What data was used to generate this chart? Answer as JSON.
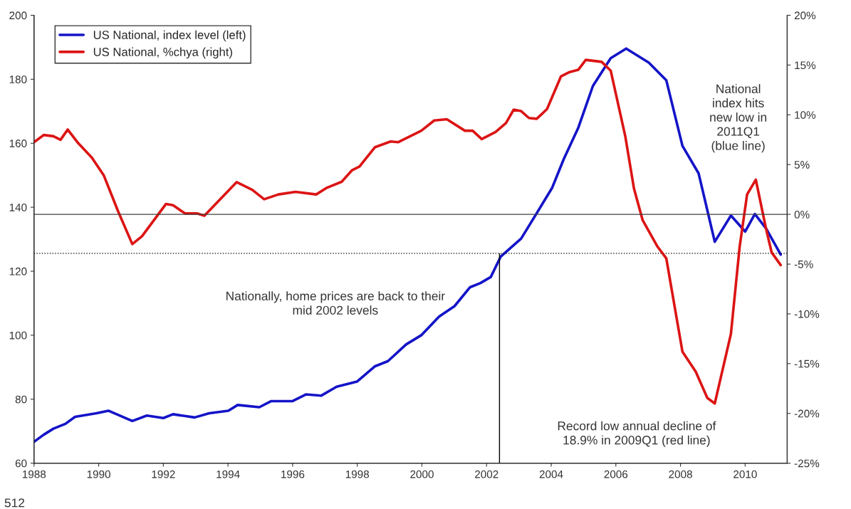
{
  "chart_data": {
    "type": "line",
    "series": [
      {
        "name": "US National, index level (left)",
        "color": "#1414c8",
        "x": [
          1988.0,
          1988.3,
          1988.6,
          1988.97,
          1989.27,
          1989.93,
          1990.3,
          1991.04,
          1991.49,
          1992.0,
          1992.3,
          1992.97,
          1993.42,
          1994.01,
          1994.3,
          1994.97,
          1995.34,
          1996.0,
          1996.41,
          1996.88,
          1997.36,
          1997.99,
          1998.55,
          1998.95,
          1999.51,
          1999.98,
          2000.53,
          2001.01,
          2001.49,
          2001.81,
          2002.13,
          2002.44,
          2003.07,
          2003.55,
          2004.03,
          2004.39,
          2004.84,
          2005.29,
          2005.84,
          2006.32,
          2007.02,
          2007.56,
          2008.06,
          2008.56,
          2009.06,
          2009.56,
          2010.0,
          2010.3,
          2010.65,
          2011.1
        ],
        "values": [
          66.7,
          68.9,
          70.8,
          72.3,
          74.5,
          75.6,
          76.4,
          73.2,
          74.9,
          74.1,
          75.3,
          74.3,
          75.6,
          76.4,
          78.2,
          77.5,
          79.4,
          79.4,
          81.5,
          81.1,
          83.9,
          85.5,
          90.3,
          91.9,
          97.1,
          100,
          105.8,
          109.1,
          115,
          116.3,
          118.2,
          124.6,
          130.2,
          138.1,
          146.1,
          155.1,
          164.9,
          177.9,
          186.6,
          189.6,
          185.2,
          179.7,
          159.2,
          150.6,
          129.2,
          137.4,
          132.4,
          137.9,
          133.3,
          125.2
        ]
      },
      {
        "name": "US National, %chya (right)",
        "color": "#dc1414",
        "axis": "y2",
        "x": [
          1988.0,
          1988.3,
          1988.6,
          1988.82,
          1989.04,
          1989.34,
          1989.79,
          1990.16,
          1990.6,
          1991.04,
          1991.34,
          1992.08,
          1992.3,
          1992.67,
          1993.04,
          1993.27,
          1994.27,
          1994.75,
          1995.12,
          1995.56,
          1996.09,
          1996.73,
          1997.04,
          1997.52,
          1997.84,
          1998.07,
          1998.55,
          1999.03,
          1999.27,
          1999.98,
          2000.38,
          2000.77,
          2001.33,
          2001.57,
          2001.85,
          2002.28,
          2002.6,
          2002.84,
          2003.07,
          2003.31,
          2003.55,
          2003.87,
          2004.3,
          2004.57,
          2004.84,
          2005.07,
          2005.56,
          2005.84,
          2006.29,
          2006.56,
          2006.83,
          2007.29,
          2007.56,
          2008.06,
          2008.47,
          2008.83,
          2009.06,
          2009.56,
          2009.83,
          2010.06,
          2010.33,
          2010.65,
          2010.82,
          2011.1
        ],
        "values": [
          7.25,
          7.97,
          7.85,
          7.49,
          8.52,
          7.25,
          5.7,
          3.9,
          0.31,
          -2.99,
          -2.2,
          1.04,
          0.92,
          0.09,
          0.09,
          -0.13,
          3.24,
          2.47,
          1.52,
          2.0,
          2.26,
          2.0,
          2.64,
          3.28,
          4.44,
          4.81,
          6.75,
          7.32,
          7.25,
          8.4,
          9.43,
          9.55,
          8.4,
          8.4,
          7.56,
          8.28,
          9.17,
          10.52,
          10.37,
          9.68,
          9.6,
          10.57,
          13.85,
          14.3,
          14.53,
          15.52,
          15.32,
          14.44,
          7.87,
          2.6,
          -0.6,
          -3.25,
          -4.42,
          -13.8,
          -15.8,
          -18.45,
          -19.0,
          -12.0,
          -3.25,
          2.0,
          3.48,
          -1.5,
          -3.83,
          -5.1
        ]
      }
    ],
    "xlim": [
      1988,
      2011.3
    ],
    "xticks": [
      1988,
      1990,
      1992,
      1994,
      1996,
      1998,
      2000,
      2002,
      2004,
      2006,
      2008,
      2010
    ],
    "ylim": [
      60,
      200
    ],
    "yticks": [
      60,
      80,
      100,
      120,
      140,
      160,
      180,
      200
    ],
    "y2lim": [
      -25,
      20
    ],
    "y2ticks": [
      {
        "value": -25,
        "label": "-25%"
      },
      {
        "value": -20,
        "label": "-20%"
      },
      {
        "value": -15,
        "label": "-15%"
      },
      {
        "value": -10,
        "label": "-10%"
      },
      {
        "value": -5,
        "label": "-5%"
      },
      {
        "value": 0,
        "label": "0%"
      },
      {
        "value": 5,
        "label": "5%"
      },
      {
        "value": 10,
        "label": "10%"
      },
      {
        "value": 15,
        "label": "15%"
      },
      {
        "value": 20,
        "label": "20%"
      }
    ],
    "ref_lines": [
      {
        "axis": "y2",
        "value": 0,
        "color": "#404040",
        "line_style": "solid"
      },
      {
        "axis": "y",
        "value": 125.6,
        "color": "#000000",
        "line_style": "dotted"
      },
      {
        "axis": "x",
        "value": 2002.4,
        "color": "#000000",
        "line_style": "solid"
      }
    ],
    "annotations": [
      "Nationally, home prices are back to their\nmid 2002 levels",
      "National\nindex hits\nnew low in\n2011Q1\n(blue line)",
      "Record low annual decline of\n18.9% in 2009Q1 (red line)",
      "512"
    ],
    "legend": "top left",
    "grid": false,
    "marker": "none",
    "line_style": "solid"
  }
}
